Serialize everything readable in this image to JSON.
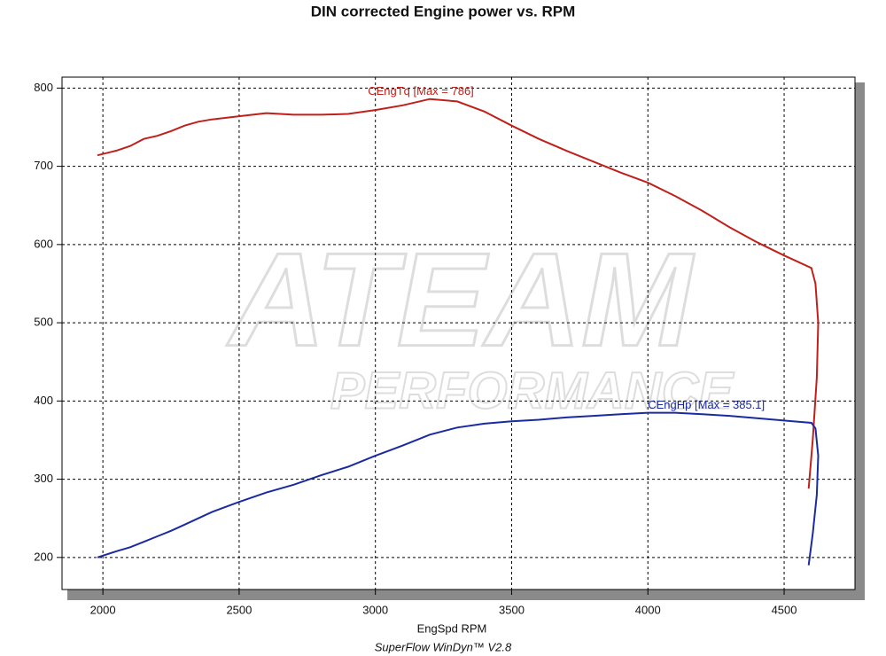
{
  "chart_data": {
    "type": "line",
    "title": "DIN corrected Engine power vs. RPM",
    "x_label": "EngSpd  RPM",
    "footer": "SuperFlow WinDyn™ V2.8",
    "watermark": [
      "ATEAM",
      "PERFORMANCE"
    ],
    "x": [
      1980,
      2050,
      2100,
      2150,
      2200,
      2250,
      2300,
      2350,
      2400,
      2500,
      2600,
      2700,
      2800,
      2900,
      3000,
      3100,
      3200,
      3300,
      3400,
      3500,
      3600,
      3700,
      3800,
      3900,
      4000,
      4100,
      4200,
      4300,
      4400,
      4500,
      4600,
      4615,
      4625,
      4620,
      4605,
      4590
    ],
    "series": [
      {
        "name": "CEngTq [Max = 786]",
        "color": "#c0201a",
        "values": [
          714,
          720,
          726,
          735,
          739,
          745,
          752,
          757,
          760,
          764,
          768,
          766,
          766,
          767,
          772,
          778,
          786,
          783,
          770,
          752,
          735,
          720,
          706,
          692,
          679,
          662,
          643,
          622,
          603,
          586,
          570,
          550,
          500,
          430,
          350,
          288
        ]
      },
      {
        "name": "CEngHp [Max = 385.1]",
        "color": "#1a2aa0",
        "values": [
          200,
          208,
          213,
          220,
          227,
          234,
          242,
          250,
          258,
          271,
          283,
          293,
          305,
          316,
          330,
          343,
          357,
          366,
          371,
          374,
          376,
          379,
          381,
          383,
          385,
          385,
          383,
          381,
          378,
          375,
          372,
          365,
          330,
          280,
          230,
          190
        ]
      }
    ],
    "xlim": [
      1850,
      4760
    ],
    "ylim": [
      159,
      814
    ],
    "xticks": [
      2000,
      2500,
      3000,
      3500,
      4000,
      4500
    ],
    "yticks": [
      200,
      300,
      400,
      500,
      600,
      700,
      800
    ],
    "grid": true
  }
}
